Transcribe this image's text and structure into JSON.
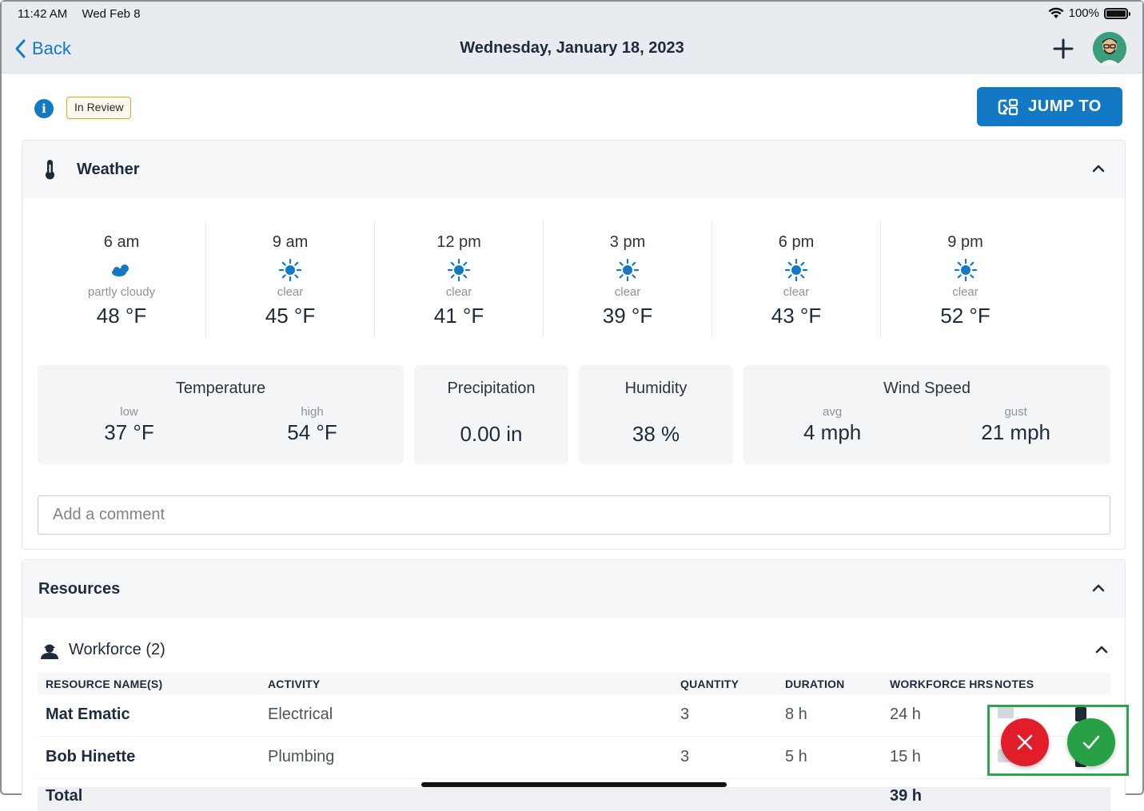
{
  "status_bar": {
    "time": "11:42 AM",
    "date": "Wed Feb 8",
    "battery": "100%"
  },
  "nav": {
    "back_label": "Back",
    "title": "Wednesday, January 18, 2023",
    "add_icon": "plus-icon",
    "avatar_icon": "user-avatar"
  },
  "header": {
    "badge": "In Review",
    "jump_label": "JUMP TO",
    "info_glyph": "i"
  },
  "weather": {
    "title": "Weather",
    "hours": [
      {
        "time": "6 am",
        "condition": "partly cloudy",
        "temp": "48 °F",
        "icon": "partly-cloudy-icon"
      },
      {
        "time": "9 am",
        "condition": "clear",
        "temp": "45 °F",
        "icon": "sun-icon"
      },
      {
        "time": "12 pm",
        "condition": "clear",
        "temp": "41 °F",
        "icon": "sun-icon"
      },
      {
        "time": "3 pm",
        "condition": "clear",
        "temp": "39 °F",
        "icon": "sun-icon"
      },
      {
        "time": "6 pm",
        "condition": "clear",
        "temp": "43 °F",
        "icon": "sun-icon"
      },
      {
        "time": "9 pm",
        "condition": "clear",
        "temp": "52 °F",
        "icon": "sun-icon"
      }
    ],
    "temperature": {
      "label": "Temperature",
      "low_label": "low",
      "low": "37 °F",
      "high_label": "high",
      "high": "54 °F"
    },
    "precipitation": {
      "label": "Precipitation",
      "value": "0.00 in"
    },
    "humidity": {
      "label": "Humidity",
      "value": "38 %"
    },
    "wind": {
      "label": "Wind Speed",
      "avg_label": "avg",
      "avg": "4 mph",
      "gust_label": "gust",
      "gust": "21 mph"
    },
    "comment_placeholder": "Add a comment"
  },
  "resources": {
    "title": "Resources",
    "workforce_label": "Workforce (2)",
    "columns": [
      "RESOURCE NAME(S)",
      "ACTIVITY",
      "QUANTITY",
      "DURATION",
      "WORKFORCE HRS",
      "NOTES"
    ],
    "rows": [
      {
        "name": "Mat Ematic",
        "activity": "Electrical",
        "quantity": "3",
        "duration": "8 h",
        "hours": "24 h"
      },
      {
        "name": "Bob Hinette",
        "activity": "Plumbing",
        "quantity": "3",
        "duration": "5 h",
        "hours": "15 h"
      }
    ],
    "total_label": "Total",
    "total_hours": "39 h"
  },
  "colors": {
    "accent": "#1479c4",
    "reject": "#e11d2a",
    "approve": "#27a046",
    "badge_border": "#e0a43a"
  }
}
